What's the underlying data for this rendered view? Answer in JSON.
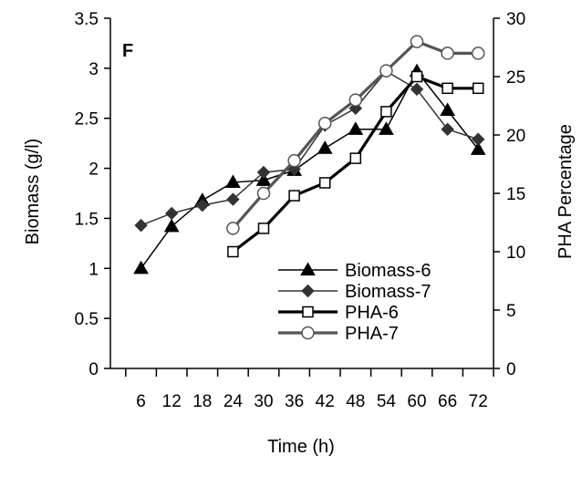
{
  "chart_data": {
    "type": "line",
    "panel_label": "F",
    "xlabel": "Time (h)",
    "ylabel_left": "Biomass (g/l)",
    "ylabel_right": "PHA Percentage",
    "xlim": [
      0,
      75
    ],
    "x_ticks": [
      6,
      12,
      18,
      24,
      30,
      36,
      42,
      48,
      54,
      60,
      66,
      72
    ],
    "ylim_left": [
      0,
      3.5
    ],
    "y_ticks_left": [
      "0",
      "0.5",
      "1",
      "1.5",
      "2",
      "2.5",
      "3",
      "3.5"
    ],
    "y_tick_values_left": [
      0,
      0.5,
      1,
      1.5,
      2,
      2.5,
      3,
      3.5
    ],
    "ylim_right": [
      0,
      30
    ],
    "y_ticks_right": [
      "0",
      "5",
      "10",
      "15",
      "20",
      "25",
      "30"
    ],
    "y_tick_values_right": [
      0,
      5,
      10,
      15,
      20,
      25,
      30
    ],
    "grid": false,
    "legend_position": "lower-right",
    "series": [
      {
        "name": "Biomass-6",
        "axis": "left",
        "marker": "triangle",
        "color": "#000000",
        "x": [
          6,
          12,
          18,
          24,
          30,
          36,
          42,
          48,
          54,
          60,
          66,
          72
        ],
        "values": [
          1.0,
          1.42,
          1.68,
          1.86,
          1.88,
          1.98,
          2.2,
          2.39,
          2.39,
          2.97,
          2.58,
          2.19
        ]
      },
      {
        "name": "Biomass-7",
        "axis": "left",
        "marker": "diamond",
        "color": "#333333",
        "x": [
          6,
          12,
          18,
          24,
          30,
          36,
          42,
          48,
          54,
          60,
          66,
          72
        ],
        "values": [
          1.43,
          1.55,
          1.63,
          1.69,
          1.96,
          1.99,
          2.43,
          2.6,
          2.97,
          2.79,
          2.39,
          2.29
        ]
      },
      {
        "name": "PHA-6",
        "axis": "right",
        "marker": "square",
        "color": "#000000",
        "x": [
          24,
          30,
          36,
          42,
          48,
          54,
          60,
          66,
          72
        ],
        "values": [
          10,
          12,
          14.8,
          15.9,
          18,
          22,
          25,
          24,
          24
        ]
      },
      {
        "name": "PHA-7",
        "axis": "right",
        "marker": "circle",
        "color": "#555555",
        "x": [
          24,
          30,
          36,
          42,
          48,
          54,
          60,
          66,
          72
        ],
        "values": [
          12,
          15,
          17.8,
          21,
          23,
          25.5,
          28,
          27,
          27
        ]
      }
    ]
  }
}
